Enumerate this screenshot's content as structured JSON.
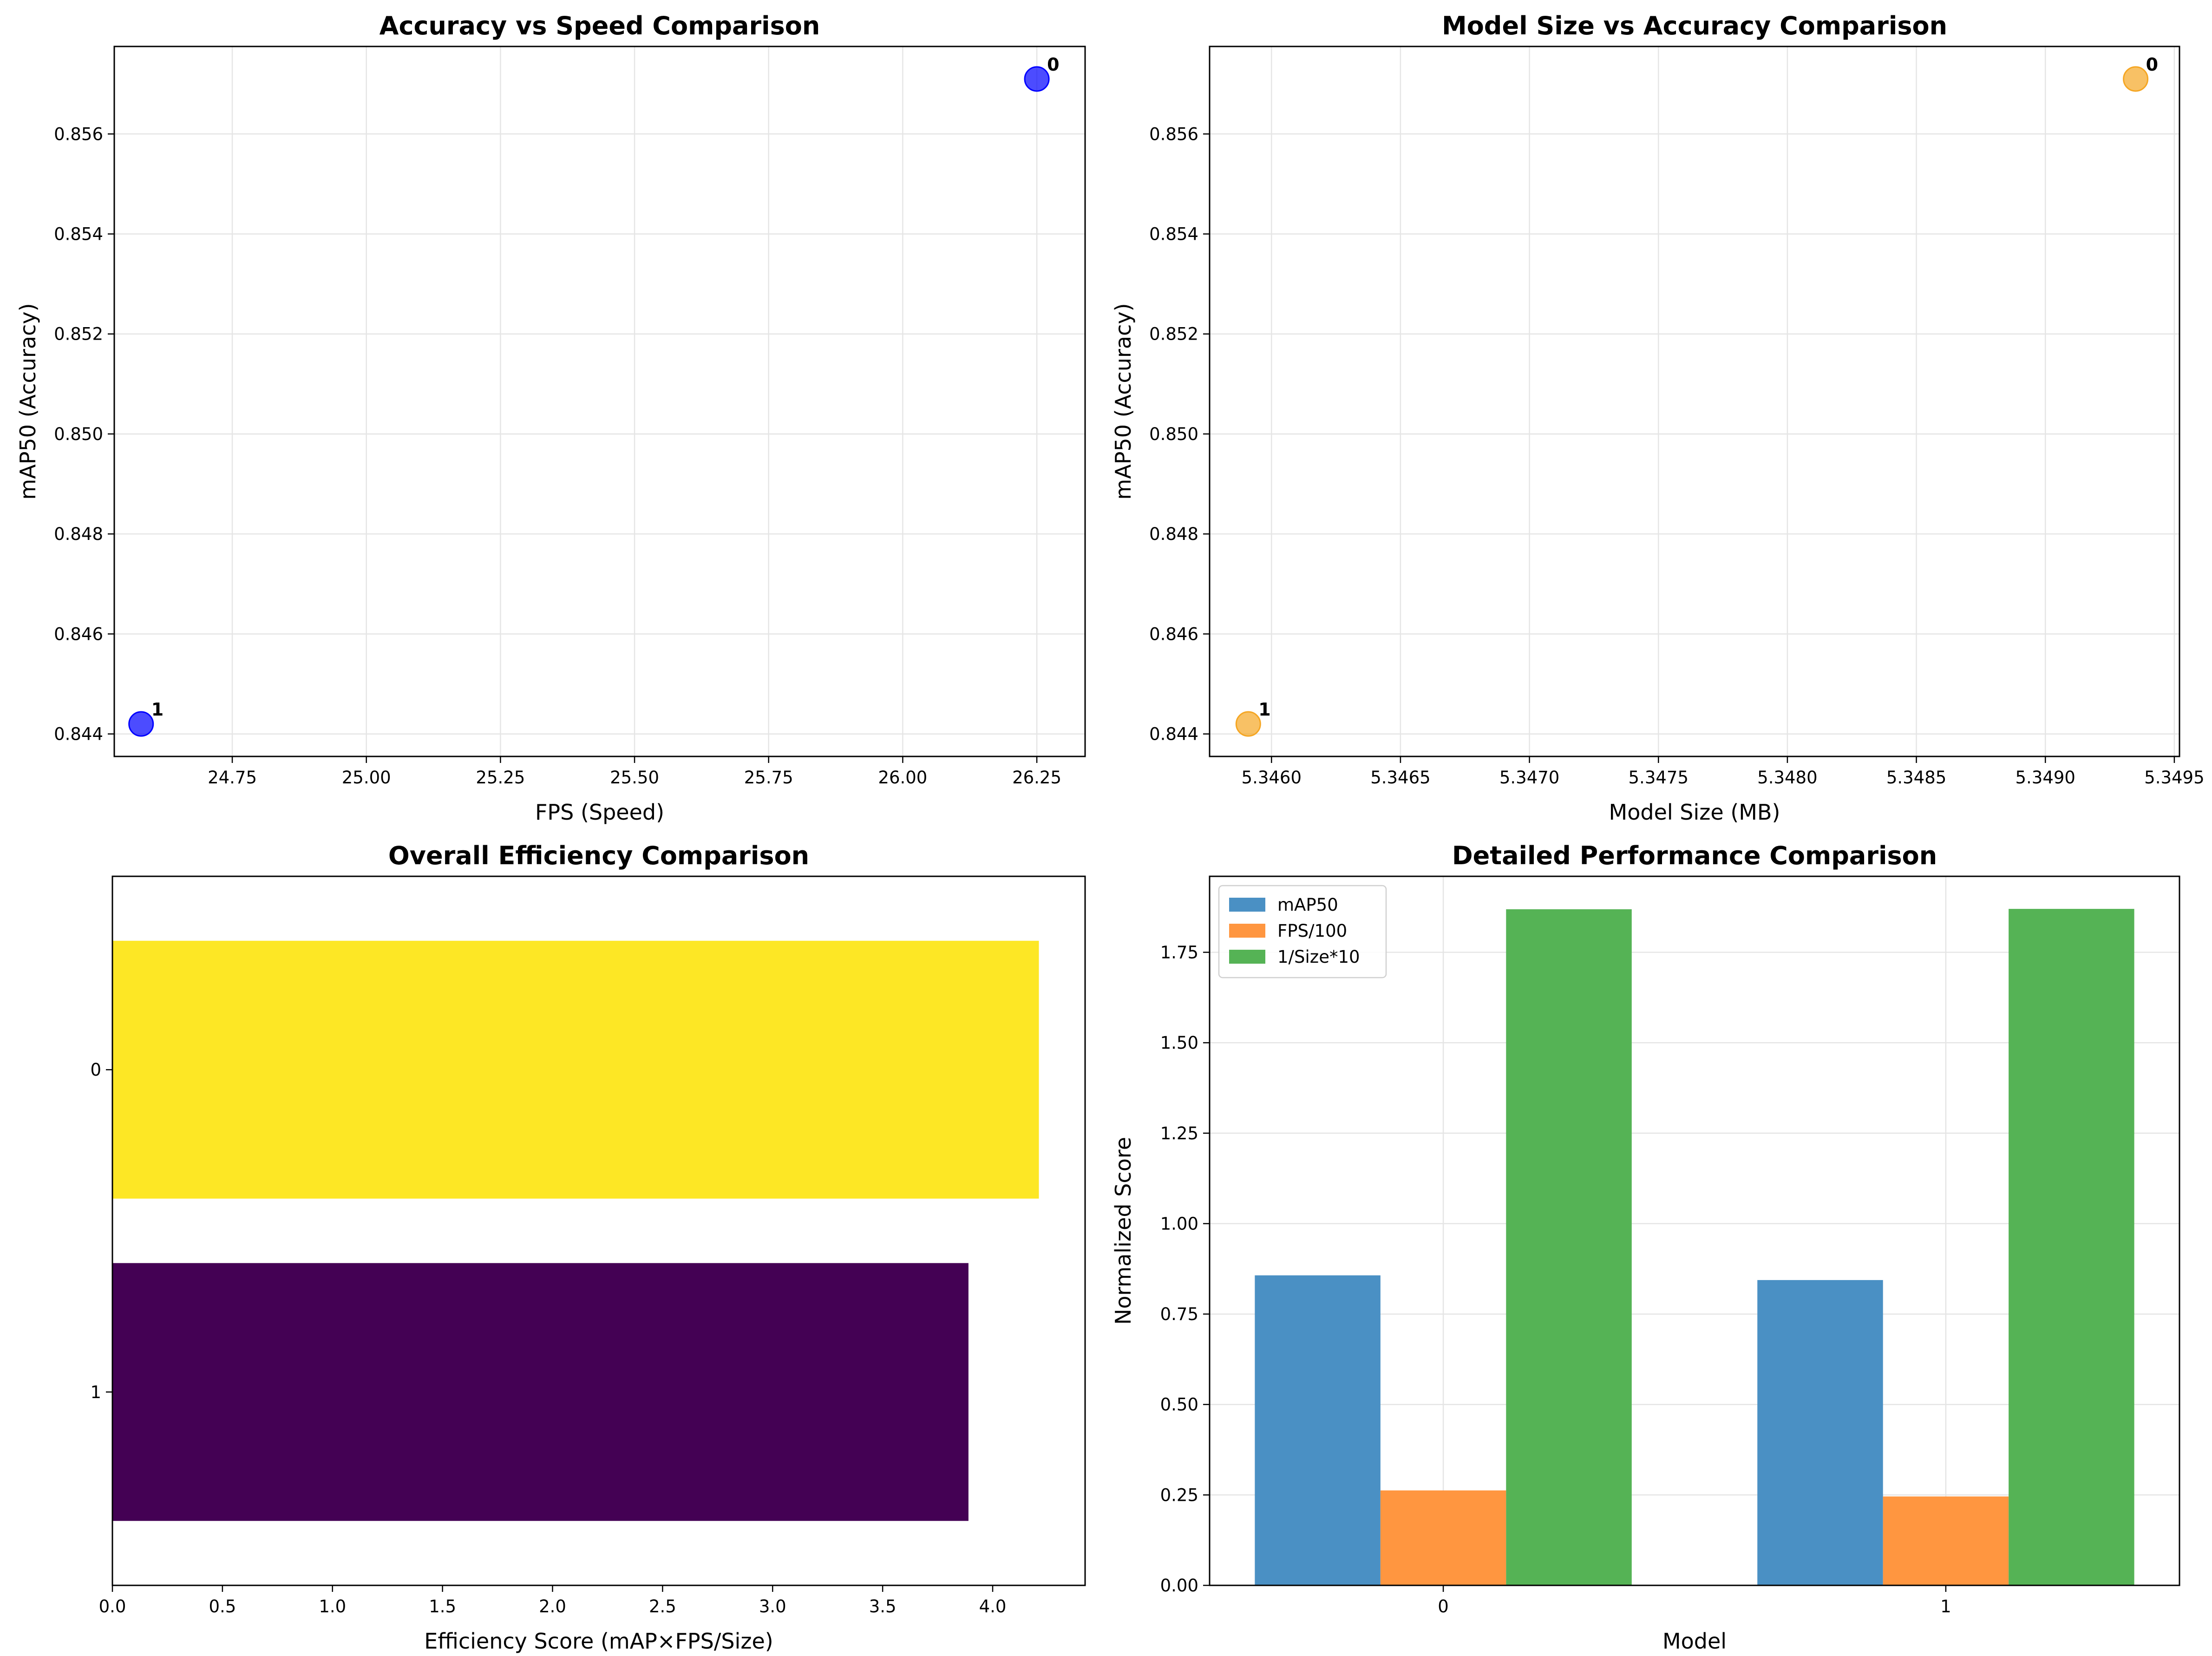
{
  "chart_data": [
    {
      "type": "scatter",
      "title": "Accuracy vs Speed Comparison",
      "xlabel": "FPS (Speed)",
      "ylabel": "mAP50 (Accuracy)",
      "xlim": [
        24.53,
        26.34
      ],
      "ylim": [
        0.84355,
        0.85775
      ],
      "xticks": [
        24.75,
        25.0,
        25.25,
        25.5,
        25.75,
        26.0,
        26.25
      ],
      "xtick_labels": [
        "24.75",
        "25.00",
        "25.25",
        "25.50",
        "25.75",
        "26.00",
        "26.25"
      ],
      "yticks": [
        0.844,
        0.846,
        0.848,
        0.85,
        0.852,
        0.854,
        0.856
      ],
      "ytick_labels": [
        "0.844",
        "0.846",
        "0.848",
        "0.850",
        "0.852",
        "0.854",
        "0.856"
      ],
      "grid": true,
      "color": "#0000ff",
      "points": [
        {
          "label": "0",
          "x": 26.25,
          "y": 0.8571
        },
        {
          "label": "1",
          "x": 24.58,
          "y": 0.8442
        }
      ]
    },
    {
      "type": "scatter",
      "title": "Model Size vs Accuracy Comparison",
      "xlabel": "Model Size (MB)",
      "ylabel": "mAP50 (Accuracy)",
      "xlim": [
        5.34576,
        5.34952
      ],
      "ylim": [
        0.84355,
        0.85775
      ],
      "xticks": [
        5.346,
        5.3465,
        5.347,
        5.3475,
        5.348,
        5.3485,
        5.349,
        5.3495
      ],
      "xtick_labels": [
        "5.3460",
        "5.3465",
        "5.3470",
        "5.3475",
        "5.3480",
        "5.3485",
        "5.3490",
        "5.3495"
      ],
      "yticks": [
        0.844,
        0.846,
        0.848,
        0.85,
        0.852,
        0.854,
        0.856
      ],
      "ytick_labels": [
        "0.844",
        "0.846",
        "0.848",
        "0.850",
        "0.852",
        "0.854",
        "0.856"
      ],
      "grid": true,
      "color": "#f5a623",
      "points": [
        {
          "label": "0",
          "x": 5.34935,
          "y": 0.8571
        },
        {
          "label": "1",
          "x": 5.34591,
          "y": 0.8442
        }
      ]
    },
    {
      "type": "bar",
      "orientation": "horizontal",
      "title": "Overall Efficiency Comparison",
      "xlabel": "Efficiency Score (mAP×FPS/Size)",
      "ylabel": "",
      "xlim": [
        0,
        4.42
      ],
      "xticks": [
        0,
        0.5,
        1.0,
        1.5,
        2.0,
        2.5,
        3.0,
        3.5,
        4.0
      ],
      "xtick_labels": [
        "0.0",
        "0.5",
        "1.0",
        "1.5",
        "2.0",
        "2.5",
        "3.0",
        "3.5",
        "4.0"
      ],
      "categories": [
        "0",
        "1"
      ],
      "values": [
        4.21,
        3.89
      ],
      "colors": [
        "#fde725",
        "#440154"
      ],
      "grid": false
    },
    {
      "type": "bar",
      "title": "Detailed Performance Comparison",
      "xlabel": "Model",
      "ylabel": "Normalized Score",
      "ylim": [
        0,
        1.96
      ],
      "yticks": [
        0,
        0.25,
        0.5,
        0.75,
        1.0,
        1.25,
        1.5,
        1.75
      ],
      "ytick_labels": [
        "0.00",
        "0.25",
        "0.50",
        "0.75",
        "1.00",
        "1.25",
        "1.50",
        "1.75"
      ],
      "categories": [
        "0",
        "1"
      ],
      "series": [
        {
          "name": "mAP50",
          "color": "#4a90c4",
          "values": [
            0.857,
            0.844
          ]
        },
        {
          "name": "FPS/100",
          "color": "#ff9640",
          "values": [
            0.2625,
            0.2458
          ]
        },
        {
          "name": "1/Size*10",
          "color": "#55b355",
          "values": [
            1.869,
            1.87
          ]
        }
      ],
      "legend": "upper-left",
      "grid": true
    }
  ]
}
